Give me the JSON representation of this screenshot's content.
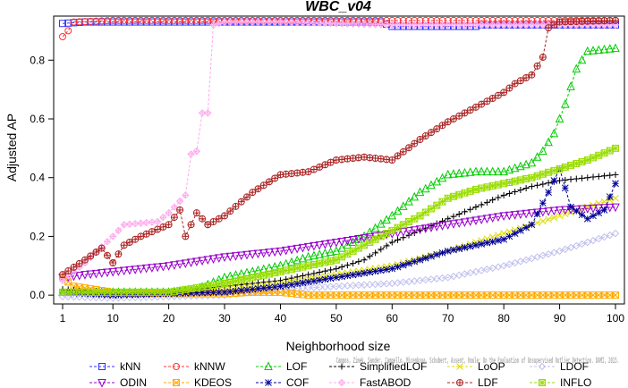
{
  "chart_data": {
    "type": "line",
    "title": "WBC_v04",
    "xlabel": "Neighborhood size",
    "ylabel": "Adjusted AP",
    "xlim": [
      1,
      100
    ],
    "ylim": [
      -0.03,
      0.95
    ],
    "x_ticks": [
      1,
      10,
      20,
      30,
      40,
      50,
      60,
      70,
      80,
      90,
      100
    ],
    "y_ticks": [
      0.0,
      0.2,
      0.4,
      0.6,
      0.8
    ],
    "y_tick_labels": [
      "0.0",
      "0.2",
      "0.4",
      "0.6",
      "0.8"
    ],
    "grid": false,
    "legend_position": "bottom",
    "caption": "Campos, Zimek, Sander, Campello, Micenkova, Schubert, Assent, Houle: On the Evaluation of Unsupervised Outlier Detection. DAMI, 2015.",
    "series": [
      {
        "name": "kNN",
        "color": "#3333ff",
        "marker": "square",
        "points": [
          [
            1,
            0.925
          ],
          [
            5,
            0.93
          ],
          [
            20,
            0.93
          ],
          [
            40,
            0.93
          ],
          [
            58,
            0.93
          ],
          [
            60,
            0.915
          ],
          [
            75,
            0.915
          ],
          [
            76,
            0.92
          ],
          [
            100,
            0.92
          ]
        ]
      },
      {
        "name": "kNNW",
        "color": "#ff3333",
        "marker": "circle",
        "points": [
          [
            1,
            0.88
          ],
          [
            2,
            0.9
          ],
          [
            3,
            0.93
          ],
          [
            10,
            0.935
          ],
          [
            40,
            0.935
          ],
          [
            100,
            0.935
          ]
        ]
      },
      {
        "name": "LOF",
        "color": "#00cc00",
        "marker": "triangle",
        "points": [
          [
            1,
            0.01
          ],
          [
            10,
            0.01
          ],
          [
            20,
            0.01
          ],
          [
            25,
            0.02
          ],
          [
            30,
            0.06
          ],
          [
            40,
            0.1
          ],
          [
            45,
            0.13
          ],
          [
            50,
            0.15
          ],
          [
            55,
            0.2
          ],
          [
            60,
            0.27
          ],
          [
            65,
            0.35
          ],
          [
            70,
            0.41
          ],
          [
            75,
            0.42
          ],
          [
            80,
            0.42
          ],
          [
            85,
            0.45
          ],
          [
            87,
            0.49
          ],
          [
            89,
            0.55
          ],
          [
            91,
            0.65
          ],
          [
            93,
            0.77
          ],
          [
            95,
            0.83
          ],
          [
            100,
            0.84
          ]
        ]
      },
      {
        "name": "SimplifiedLOF",
        "color": "#000000",
        "marker": "plus",
        "points": [
          [
            1,
            0.02
          ],
          [
            10,
            0.01
          ],
          [
            20,
            0.01
          ],
          [
            25,
            0.02
          ],
          [
            30,
            0.03
          ],
          [
            40,
            0.05
          ],
          [
            50,
            0.09
          ],
          [
            55,
            0.12
          ],
          [
            60,
            0.18
          ],
          [
            65,
            0.22
          ],
          [
            70,
            0.26
          ],
          [
            75,
            0.3
          ],
          [
            80,
            0.34
          ],
          [
            85,
            0.37
          ],
          [
            90,
            0.39
          ],
          [
            95,
            0.4
          ],
          [
            100,
            0.41
          ]
        ]
      },
      {
        "name": "LoOP",
        "color": "#dddd00",
        "marker": "x",
        "points": [
          [
            1,
            0.01
          ],
          [
            10,
            0.005
          ],
          [
            20,
            0.005
          ],
          [
            30,
            0.02
          ],
          [
            40,
            0.04
          ],
          [
            50,
            0.07
          ],
          [
            60,
            0.1
          ],
          [
            70,
            0.15
          ],
          [
            80,
            0.21
          ],
          [
            90,
            0.27
          ],
          [
            100,
            0.33
          ]
        ]
      },
      {
        "name": "LDOF",
        "color": "#c0c0ee",
        "marker": "diamond",
        "points": [
          [
            1,
            -0.005
          ],
          [
            10,
            -0.01
          ],
          [
            20,
            -0.005
          ],
          [
            30,
            0.0
          ],
          [
            40,
            0.02
          ],
          [
            50,
            0.03
          ],
          [
            60,
            0.04
          ],
          [
            70,
            0.06
          ],
          [
            80,
            0.1
          ],
          [
            90,
            0.15
          ],
          [
            100,
            0.21
          ]
        ]
      },
      {
        "name": "ODIN",
        "color": "#9900cc",
        "marker": "triangle-down",
        "points": [
          [
            1,
            0.06
          ],
          [
            5,
            0.07
          ],
          [
            10,
            0.08
          ],
          [
            20,
            0.1
          ],
          [
            30,
            0.13
          ],
          [
            40,
            0.15
          ],
          [
            50,
            0.18
          ],
          [
            60,
            0.21
          ],
          [
            70,
            0.24
          ],
          [
            80,
            0.27
          ],
          [
            90,
            0.29
          ],
          [
            100,
            0.3
          ]
        ]
      },
      {
        "name": "KDEOS",
        "color": "#ffaa00",
        "marker": "square-x",
        "points": [
          [
            1,
            0.06
          ],
          [
            3,
            0.03
          ],
          [
            10,
            0.01
          ],
          [
            20,
            0.005
          ],
          [
            30,
            0.005
          ],
          [
            35,
            0.01
          ],
          [
            40,
            0.01
          ],
          [
            45,
            0.0
          ],
          [
            60,
            0.0
          ],
          [
            80,
            0.0
          ],
          [
            100,
            0.0
          ]
        ]
      },
      {
        "name": "COF",
        "color": "#000099",
        "marker": "star",
        "points": [
          [
            1,
            0.01
          ],
          [
            10,
            0.0
          ],
          [
            20,
            0.005
          ],
          [
            30,
            0.01
          ],
          [
            40,
            0.03
          ],
          [
            50,
            0.06
          ],
          [
            60,
            0.09
          ],
          [
            70,
            0.15
          ],
          [
            80,
            0.19
          ],
          [
            85,
            0.24
          ],
          [
            88,
            0.35
          ],
          [
            90,
            0.43
          ],
          [
            92,
            0.3
          ],
          [
            95,
            0.26
          ],
          [
            98,
            0.29
          ],
          [
            100,
            0.38
          ]
        ]
      },
      {
        "name": "FastABOD",
        "color": "#ffaaee",
        "marker": "diamond-plus",
        "points": [
          [
            1,
            0.05
          ],
          [
            5,
            0.11
          ],
          [
            10,
            0.2
          ],
          [
            12,
            0.24
          ],
          [
            18,
            0.25
          ],
          [
            20,
            0.28
          ],
          [
            23,
            0.34
          ],
          [
            24,
            0.48
          ],
          [
            25,
            0.49
          ],
          [
            26,
            0.62
          ],
          [
            27,
            0.62
          ],
          [
            28,
            0.92
          ],
          [
            30,
            0.93
          ],
          [
            40,
            0.93
          ],
          [
            60,
            0.92
          ],
          [
            80,
            0.92
          ],
          [
            100,
            0.92
          ]
        ]
      },
      {
        "name": "LDF",
        "color": "#aa2222",
        "marker": "circle-plus",
        "points": [
          [
            1,
            0.07
          ],
          [
            5,
            0.12
          ],
          [
            8,
            0.16
          ],
          [
            10,
            0.11
          ],
          [
            12,
            0.17
          ],
          [
            15,
            0.2
          ],
          [
            20,
            0.24
          ],
          [
            22,
            0.29
          ],
          [
            23,
            0.2
          ],
          [
            25,
            0.28
          ],
          [
            27,
            0.24
          ],
          [
            30,
            0.27
          ],
          [
            35,
            0.35
          ],
          [
            40,
            0.41
          ],
          [
            45,
            0.42
          ],
          [
            50,
            0.46
          ],
          [
            55,
            0.47
          ],
          [
            60,
            0.46
          ],
          [
            65,
            0.53
          ],
          [
            70,
            0.59
          ],
          [
            75,
            0.64
          ],
          [
            80,
            0.69
          ],
          [
            82,
            0.72
          ],
          [
            85,
            0.75
          ],
          [
            87,
            0.81
          ],
          [
            88,
            0.91
          ],
          [
            90,
            0.93
          ],
          [
            100,
            0.935
          ]
        ]
      },
      {
        "name": "INFLO",
        "color": "#99dd00",
        "marker": "square-star",
        "points": [
          [
            1,
            0.01
          ],
          [
            10,
            0.01
          ],
          [
            20,
            0.01
          ],
          [
            30,
            0.04
          ],
          [
            40,
            0.08
          ],
          [
            50,
            0.12
          ],
          [
            55,
            0.17
          ],
          [
            60,
            0.22
          ],
          [
            65,
            0.27
          ],
          [
            70,
            0.33
          ],
          [
            75,
            0.36
          ],
          [
            80,
            0.38
          ],
          [
            85,
            0.4
          ],
          [
            90,
            0.43
          ],
          [
            95,
            0.46
          ],
          [
            100,
            0.5
          ]
        ]
      }
    ]
  }
}
